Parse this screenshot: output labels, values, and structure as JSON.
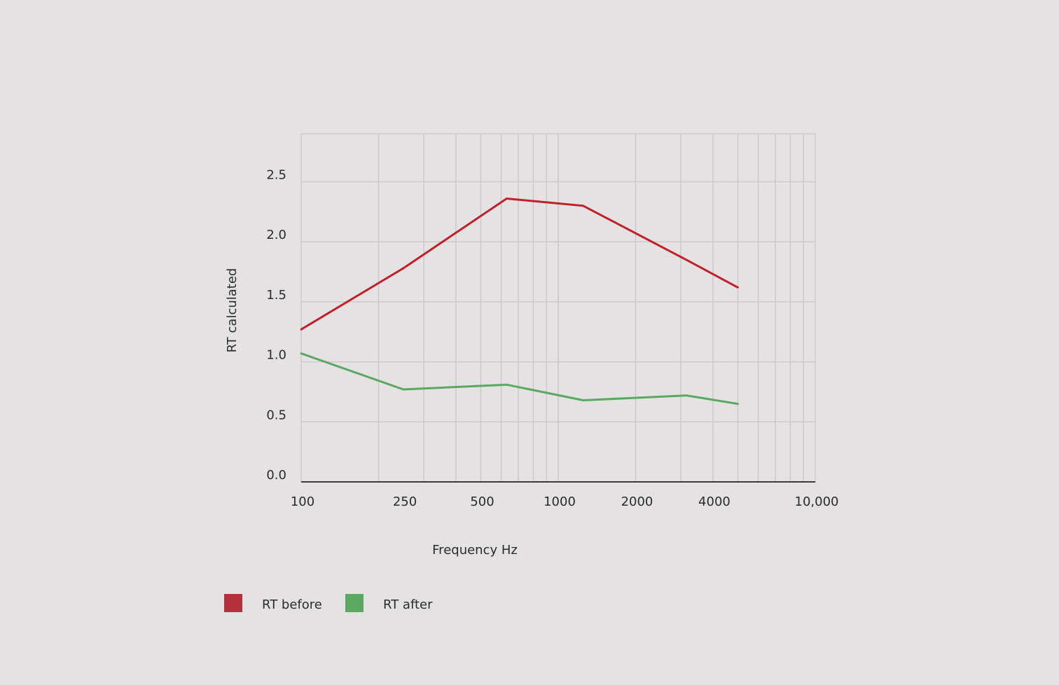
{
  "chart_data": {
    "type": "line",
    "xlabel": "Frequency Hz",
    "ylabel": "RT calculated",
    "x_scale": "log",
    "xlim": [
      100,
      10000
    ],
    "ylim": [
      0,
      2.9
    ],
    "x_ticks": [
      {
        "value": 100,
        "label": "100"
      },
      {
        "value": 250,
        "label": "250"
      },
      {
        "value": 500,
        "label": "500"
      },
      {
        "value": 1000,
        "label": "1000"
      },
      {
        "value": 2000,
        "label": "2000"
      },
      {
        "value": 4000,
        "label": "4000"
      },
      {
        "value": 10000,
        "label": "10,000"
      }
    ],
    "y_ticks": [
      {
        "value": 0.0,
        "label": "0.0"
      },
      {
        "value": 0.5,
        "label": "0.5"
      },
      {
        "value": 1.0,
        "label": "1.0"
      },
      {
        "value": 1.5,
        "label": "1.5"
      },
      {
        "value": 2.0,
        "label": "2.0"
      },
      {
        "value": 2.5,
        "label": "2.5"
      }
    ],
    "grid": true,
    "legend_position": "bottom-left",
    "series": [
      {
        "name": "RT before",
        "color": "#c0202a",
        "legend_color": "#b3303c",
        "points": [
          {
            "x": 100,
            "y": 1.27
          },
          {
            "x": 250,
            "y": 1.78
          },
          {
            "x": 630,
            "y": 2.36
          },
          {
            "x": 1250,
            "y": 2.3
          },
          {
            "x": 3150,
            "y": 1.85
          },
          {
            "x": 5000,
            "y": 1.62
          }
        ]
      },
      {
        "name": "RT after",
        "color": "#5aa862",
        "legend_color": "#5aa862",
        "points": [
          {
            "x": 100,
            "y": 1.07
          },
          {
            "x": 250,
            "y": 0.77
          },
          {
            "x": 630,
            "y": 0.81
          },
          {
            "x": 1250,
            "y": 0.68
          },
          {
            "x": 3150,
            "y": 0.72
          },
          {
            "x": 5000,
            "y": 0.65
          }
        ]
      }
    ]
  }
}
